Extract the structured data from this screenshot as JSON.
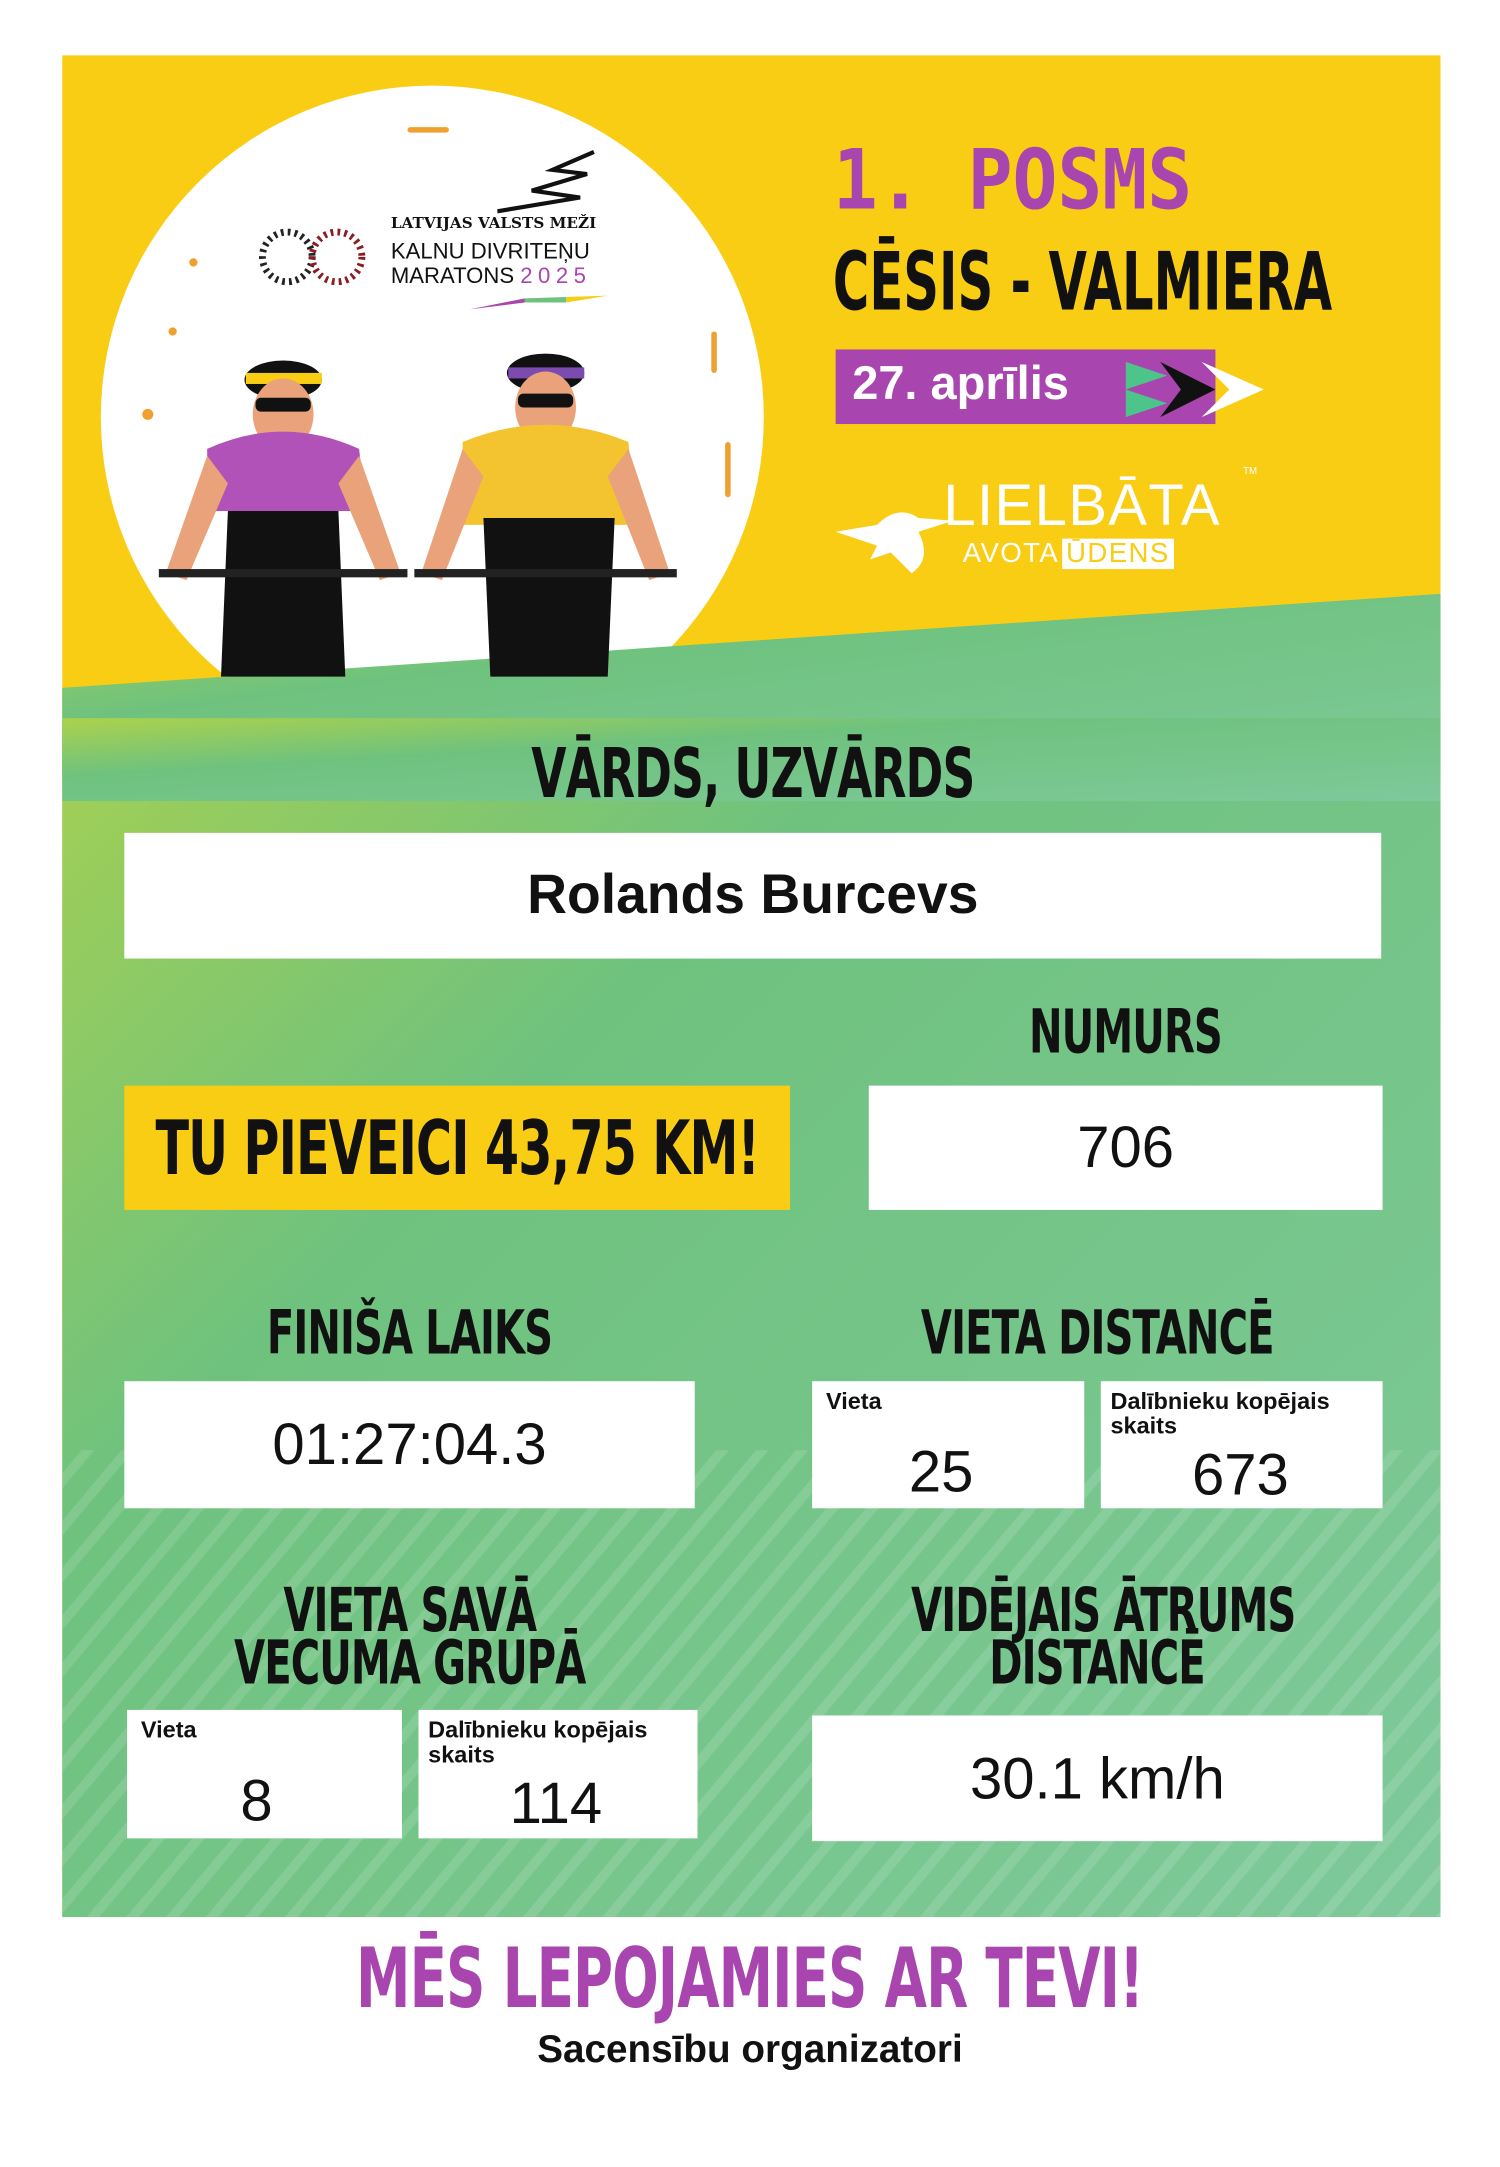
{
  "header": {
    "stage": "1. POSMS",
    "route": "CĒSIS - VALMIERA",
    "date": "27. aprīlis",
    "logo_event": {
      "sponsor": "LATVIJAS VALSTS MEŽI",
      "line1": "KALNU DIVRITEŅU",
      "line2": "MARATONS",
      "year": "2025",
      "ring_text": "VIENMĒR KUSTĪBĀ"
    },
    "logo_sponsor": {
      "line1": "LIELBĀTA",
      "line2a": "AVOTA",
      "line2b": "ŪDENS",
      "tm": "TM"
    }
  },
  "participant": {
    "name_label": "VĀRDS, UZVĀRDS",
    "name": "Rolands Burcevs",
    "number_label": "NUMURS",
    "number": "706",
    "distance_banner": "TU PIEVEICI 43,75 KM!"
  },
  "results": {
    "finish_label": "FINIŠA LAIKS",
    "finish_time": "01:27:04.3",
    "distance_place_label": "VIETA DISTANCĒ",
    "distance_place": {
      "place_label": "Vieta",
      "place": "25",
      "total_label": "Dalībnieku kopējais skaits",
      "total": "673"
    },
    "age_group_label_1": "VIETA SAVĀ",
    "age_group_label_2": "VECUMA GRUPĀ",
    "age_group_place": {
      "place_label": "Vieta",
      "place": "8",
      "total_label": "Dalībnieku kopējais skaits",
      "total": "114"
    },
    "speed_label_1": "VIDĒJAIS ĀTRUMS",
    "speed_label_2": "DISTANCĒ",
    "avg_speed": "30.1 km/h"
  },
  "footer": {
    "slogan": "MĒS LEPOJAMIES AR TEVI!",
    "signature": "Sacensību organizatori"
  },
  "colors": {
    "yellow": "#f9cd14",
    "purple": "#a845ae",
    "green_start": "#a9d14e",
    "green_end": "#74c591",
    "ink": "#111111"
  }
}
